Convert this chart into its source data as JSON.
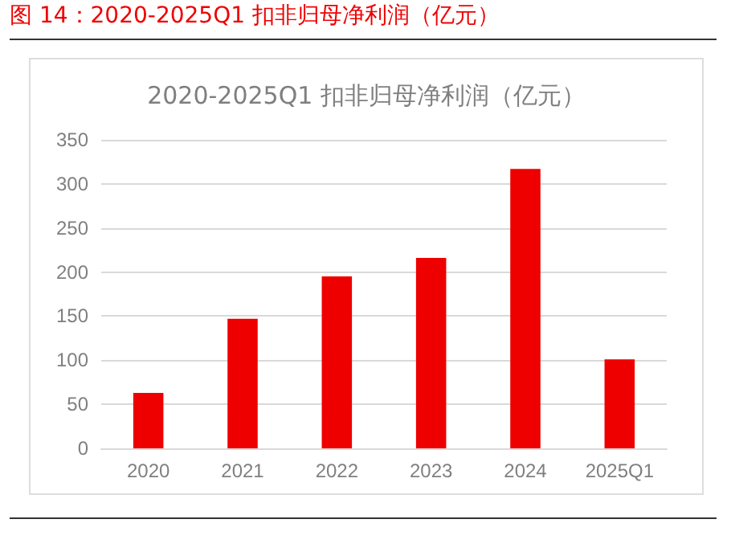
{
  "chart_data": {
    "type": "bar",
    "title": "图 14：2020-2025Q1 扣非归母净利润（亿元）",
    "subtitle": "2020-2025Q1 扣非归母净利润（亿元）",
    "categories": [
      "2020",
      "2021",
      "2022",
      "2023",
      "2024",
      "2025Q1"
    ],
    "values": [
      63,
      147,
      195,
      216,
      317,
      101
    ],
    "color": "#ee0000",
    "ylim": [
      0,
      350
    ],
    "yticks": [
      0,
      50,
      100,
      150,
      200,
      250,
      300,
      350
    ],
    "grid": "y"
  }
}
